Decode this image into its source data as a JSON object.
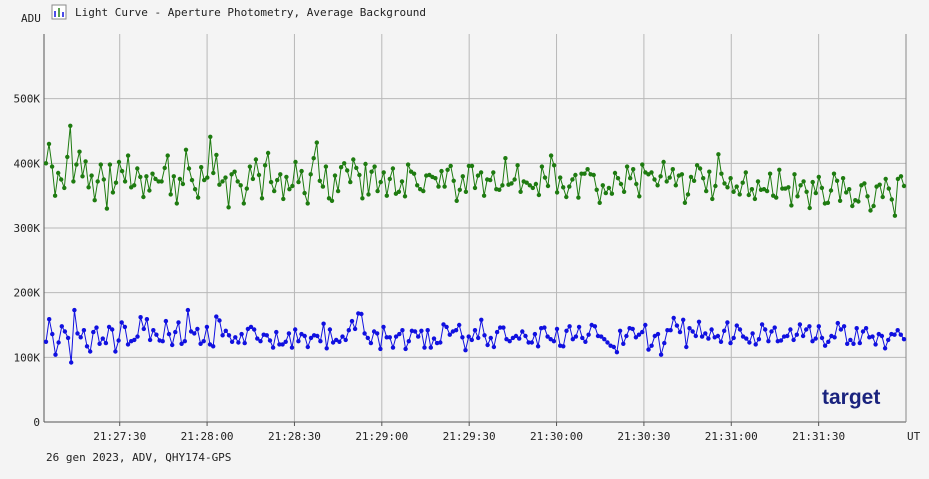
{
  "window": {
    "title": "Light Curve - Aperture Photometry, Average Background",
    "footer": "26 gen 2023, ADV, QHY174-GPS",
    "badge": "target"
  },
  "icons": {
    "title_icon": "chart-icon"
  },
  "colors": {
    "background": "#f4f4f4",
    "grid": "#b8b8b8",
    "axis": "#555555",
    "series_green": "#1e7b10",
    "series_blue": "#1010e0",
    "badge": "#1a237e"
  },
  "chart_data": {
    "type": "line",
    "title": "Light Curve - Aperture Photometry, Average Background",
    "xlabel": "UT",
    "ylabel": "ADU",
    "ylim": [
      0,
      600000
    ],
    "xlim": [
      "21:27:04",
      "21:32:00"
    ],
    "grid": true,
    "y_ticks": [
      "0",
      "100K",
      "200K",
      "300K",
      "400K",
      "500K"
    ],
    "y_tick_values": [
      0,
      100000,
      200000,
      300000,
      400000,
      500000
    ],
    "x_ticks": [
      "21:27:30",
      "21:28:00",
      "21:28:30",
      "21:29:00",
      "21:29:30",
      "21:30:00",
      "21:30:30",
      "21:31:00",
      "21:31:30"
    ],
    "x_tick_times": [
      "21:27:30",
      "21:28:00",
      "21:28:30",
      "21:29:00",
      "21:29:30",
      "21:30:00",
      "21:30:30",
      "21:31:00",
      "21:31:30"
    ],
    "series": [
      {
        "color": "#1e7b10",
        "y": [
          400000,
          430000,
          395000,
          350000,
          385000,
          375000,
          362000,
          410000,
          458000,
          372000,
          398000,
          418000,
          380000,
          403000,
          363000,
          381000,
          343000,
          372000,
          398000,
          375000,
          330000,
          398000,
          355000,
          370000,
          402000,
          388000,
          372000,
          412000,
          363000,
          366000,
          392000,
          379000,
          348000,
          380000,
          358000,
          384000,
          376000,
          372000,
          372000,
          393000,
          412000,
          352000,
          380000,
          338000,
          376000,
          368000,
          421000,
          392000,
          374000,
          360000,
          347000,
          394000,
          374000,
          378000,
          441000,
          385000,
          413000,
          367000,
          372000,
          378000,
          332000,
          383000,
          387000,
          372000,
          366000,
          338000,
          361000,
          395000,
          376000,
          406000,
          382000,
          346000,
          397000,
          416000,
          371000,
          357000,
          374000,
          383000,
          345000,
          379000,
          360000,
          365000,
          402000,
          371000,
          388000,
          354000,
          338000,
          383000,
          408000,
          432000,
          373000,
          364000,
          395000,
          346000,
          342000,
          381000,
          357000,
          394000,
          400000,
          389000,
          371000,
          406000,
          393000,
          382000,
          346000,
          399000,
          352000,
          387000,
          395000,
          357000,
          371000,
          386000,
          350000,
          376000,
          392000,
          353000,
          356000,
          372000,
          349000,
          398000,
          387000,
          384000,
          366000,
          360000,
          357000,
          381000,
          382000,
          379000,
          377000,
          364000,
          388000,
          364000,
          390000,
          396000,
          373000,
          342000,
          359000,
          380000,
          356000,
          396000,
          396000,
          362000,
          381000,
          386000,
          350000,
          375000,
          374000,
          386000,
          360000,
          359000,
          366000,
          408000,
          367000,
          369000,
          375000,
          397000,
          356000,
          372000,
          370000,
          366000,
          362000,
          368000,
          351000,
          395000,
          378000,
          365000,
          412000,
          397000,
          355000,
          378000,
          363000,
          348000,
          364000,
          375000,
          382000,
          347000,
          384000,
          384000,
          391000,
          383000,
          382000,
          359000,
          339000,
          366000,
          354000,
          362000,
          353000,
          385000,
          377000,
          368000,
          356000,
          395000,
          377000,
          391000,
          368000,
          349000,
          398000,
          386000,
          383000,
          386000,
          375000,
          366000,
          380000,
          402000,
          372000,
          378000,
          391000,
          366000,
          381000,
          383000,
          339000,
          352000,
          379000,
          373000,
          397000,
          392000,
          377000,
          357000,
          387000,
          345000,
          365000,
          414000,
          384000,
          369000,
          363000,
          377000,
          356000,
          364000,
          352000,
          370000,
          386000,
          351000,
          360000,
          345000,
          372000,
          359000,
          360000,
          357000,
          384000,
          350000,
          347000,
          390000,
          361000,
          361000,
          363000,
          335000,
          383000,
          349000,
          366000,
          372000,
          356000,
          331000,
          371000,
          354000,
          379000,
          362000,
          338000,
          339000,
          358000,
          384000,
          373000,
          342000,
          377000,
          355000,
          360000,
          334000,
          343000,
          341000,
          366000,
          369000,
          349000,
          327000,
          334000,
          364000,
          367000,
          348000,
          376000,
          361000,
          344000,
          319000,
          376000,
          380000,
          365000
        ]
      },
      {
        "color": "#1010e0",
        "y": [
          124000,
          159000,
          136000,
          104000,
          123000,
          148000,
          140000,
          130000,
          92000,
          173000,
          137000,
          131000,
          142000,
          117000,
          109000,
          139000,
          146000,
          121000,
          129000,
          122000,
          147000,
          143000,
          109000,
          126000,
          154000,
          147000,
          120000,
          125000,
          127000,
          132000,
          162000,
          144000,
          159000,
          127000,
          142000,
          135000,
          126000,
          125000,
          156000,
          136000,
          119000,
          139000,
          154000,
          121000,
          125000,
          173000,
          140000,
          137000,
          144000,
          121000,
          125000,
          147000,
          120000,
          117000,
          163000,
          157000,
          134000,
          141000,
          134000,
          124000,
          131000,
          123000,
          136000,
          122000,
          144000,
          147000,
          143000,
          129000,
          125000,
          135000,
          134000,
          126000,
          115000,
          139000,
          120000,
          120000,
          124000,
          137000,
          115000,
          143000,
          125000,
          136000,
          133000,
          116000,
          130000,
          134000,
          133000,
          125000,
          152000,
          114000,
          143000,
          123000,
          127000,
          124000,
          132000,
          127000,
          142000,
          156000,
          144000,
          168000,
          167000,
          137000,
          130000,
          122000,
          140000,
          137000,
          113000,
          147000,
          131000,
          131000,
          115000,
          132000,
          136000,
          142000,
          113000,
          125000,
          141000,
          140000,
          132000,
          141000,
          115000,
          142000,
          115000,
          129000,
          122000,
          123000,
          151000,
          147000,
          135000,
          140000,
          142000,
          150000,
          131000,
          111000,
          132000,
          127000,
          142000,
          130000,
          158000,
          134000,
          119000,
          130000,
          116000,
          139000,
          146000,
          146000,
          128000,
          125000,
          130000,
          133000,
          129000,
          140000,
          133000,
          123000,
          123000,
          136000,
          117000,
          145000,
          146000,
          132000,
          128000,
          125000,
          144000,
          118000,
          117000,
          141000,
          148000,
          128000,
          132000,
          147000,
          130000,
          124000,
          135000,
          150000,
          148000,
          133000,
          132000,
          128000,
          123000,
          118000,
          116000,
          108000,
          141000,
          121000,
          133000,
          145000,
          144000,
          131000,
          135000,
          139000,
          150000,
          112000,
          118000,
          133000,
          136000,
          104000,
          122000,
          142000,
          142000,
          161000,
          149000,
          139000,
          158000,
          116000,
          145000,
          140000,
          133000,
          155000,
          132000,
          137000,
          129000,
          143000,
          131000,
          133000,
          124000,
          141000,
          154000,
          122000,
          130000,
          149000,
          143000,
          132000,
          129000,
          123000,
          137000,
          120000,
          128000,
          151000,
          143000,
          125000,
          140000,
          146000,
          125000,
          126000,
          132000,
          133000,
          143000,
          127000,
          135000,
          151000,
          133000,
          143000,
          148000,
          125000,
          129000,
          148000,
          130000,
          118000,
          124000,
          133000,
          131000,
          153000,
          143000,
          148000,
          121000,
          127000,
          121000,
          145000,
          122000,
          140000,
          145000,
          131000,
          132000,
          120000,
          136000,
          133000,
          114000,
          127000,
          136000,
          135000,
          142000,
          135000,
          128000
        ]
      }
    ]
  }
}
